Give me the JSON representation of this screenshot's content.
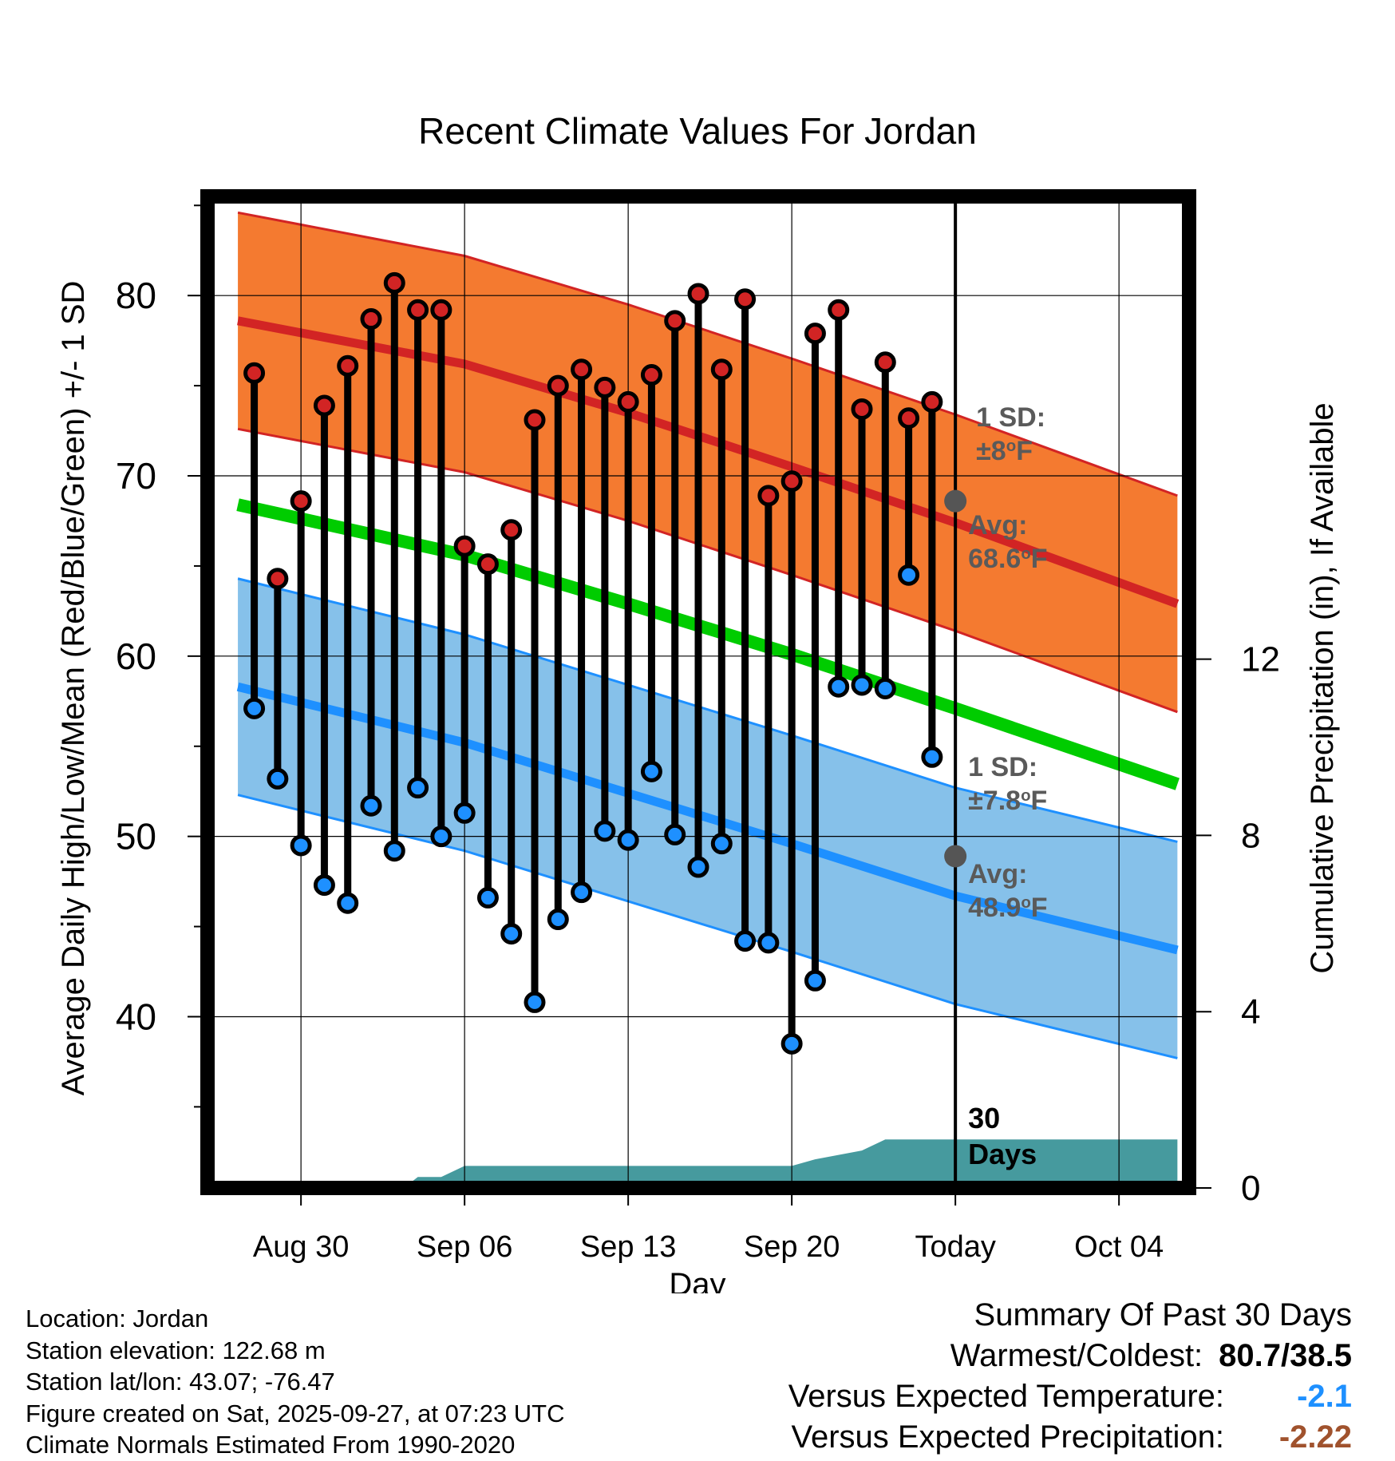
{
  "chart_data": {
    "type": "line",
    "title": "Recent Climate Values For Jordan",
    "xlabel": "Day",
    "ylabel": "Average Daily High/Low/Mean (Red/Blue/Green) +/- 1 SD",
    "y2label": "Cumulative Precipitation (in), If Available",
    "xlim": [
      -4,
      38
    ],
    "ylim": [
      30.5,
      85.5
    ],
    "y2lim": [
      0,
      22.5
    ],
    "x_ticks": [
      {
        "x": 0,
        "label": "Aug 30"
      },
      {
        "x": 7,
        "label": "Sep 06"
      },
      {
        "x": 14,
        "label": "Sep 13"
      },
      {
        "x": 21,
        "label": "Sep 20"
      },
      {
        "x": 28,
        "label": "Today"
      },
      {
        "x": 35,
        "label": "Oct 04"
      }
    ],
    "y_ticks": [
      40,
      50,
      60,
      70,
      80
    ],
    "y2_ticks": [
      0,
      4,
      8,
      12
    ],
    "days": [
      -2,
      -1,
      0,
      1,
      2,
      3,
      4,
      5,
      6,
      7,
      8,
      9,
      10,
      11,
      12,
      13,
      14,
      15,
      16,
      17,
      18,
      19,
      20,
      21,
      22,
      23,
      24,
      25,
      26,
      27
    ],
    "highs": [
      75.7,
      64.3,
      68.6,
      73.9,
      76.1,
      78.7,
      80.7,
      79.2,
      79.2,
      66.1,
      65.1,
      67.0,
      73.1,
      75.0,
      75.9,
      74.9,
      74.1,
      75.6,
      78.6,
      80.1,
      75.9,
      79.8,
      68.9,
      69.7,
      77.9,
      79.2,
      73.7,
      76.3,
      73.2,
      74.1
    ],
    "lows": [
      57.1,
      53.2,
      49.5,
      47.3,
      46.3,
      51.7,
      49.2,
      52.7,
      50.0,
      51.3,
      46.6,
      44.6,
      40.8,
      45.4,
      46.9,
      50.3,
      49.8,
      53.6,
      50.1,
      48.3,
      49.6,
      44.2,
      44.1,
      38.5,
      42.0,
      58.3,
      58.4,
      58.2,
      64.5,
      54.4
    ],
    "normal_high": {
      "name": "Average High",
      "x": [
        -2.7,
        7,
        14,
        21,
        28,
        37.5
      ],
      "values": [
        78.6,
        76.2,
        73.5,
        70.5,
        67.4,
        62.9
      ],
      "sd": 6.0
    },
    "normal_low": {
      "name": "Average Low",
      "x": [
        -2.7,
        7,
        14,
        21,
        28,
        37.5
      ],
      "values": [
        58.3,
        55.2,
        52.4,
        49.6,
        46.7,
        43.7
      ],
      "sd": 6.0
    },
    "normal_mean": {
      "name": "Mean",
      "x": [
        -2.7,
        7,
        14,
        21,
        28,
        37.5
      ],
      "values": [
        68.4,
        65.6,
        62.9,
        60.1,
        57.1,
        52.9
      ]
    },
    "precip": {
      "x": [
        -2.7,
        4.4,
        5,
        6,
        7,
        8,
        14,
        21,
        22,
        23,
        24,
        25,
        26,
        27,
        37.5
      ],
      "values": [
        0,
        0,
        0.25,
        0.25,
        0.5,
        0.5,
        0.5,
        0.5,
        0.65,
        0.75,
        0.85,
        1.1,
        1.1,
        1.1,
        1.1
      ]
    },
    "markers": {
      "avg_high": {
        "x": 28,
        "y": 68.6
      },
      "avg_low": {
        "x": 28,
        "y": 48.9
      }
    },
    "annotations": {
      "high_sd_label": "1 SD:",
      "high_sd_value": "±8°F",
      "high_avg_label": "Avg:",
      "high_avg_value": "68.6°F",
      "low_sd_label": "1 SD:",
      "low_sd_value": "±7.8°F",
      "low_avg_label": "Avg:",
      "low_avg_value": "48.9°F",
      "days_line1": "30",
      "days_line2": "Days"
    },
    "colors": {
      "high_band": "#f47a30",
      "high_line": "#d22424",
      "low_band": "#86c1ea",
      "low_line": "#1e90ff",
      "mean_line": "#00cc00",
      "precip": "#469a9e",
      "marker": "#555555"
    }
  },
  "meta": {
    "location": "Location: Jordan",
    "elevation": "Station elevation: 122.68 m",
    "latlon": "Station lat/lon: 43.07; -76.47",
    "created": "Figure created on Sat, 2025-09-27, at 07:23 UTC",
    "normals": "Climate Normals Estimated From 1990-2020"
  },
  "summary": {
    "title": "Summary Of Past 30 Days",
    "warm_cold_label": "Warmest/Coldest:",
    "warm_cold_value": "80.7/38.5",
    "temp_label": "Versus Expected Temperature:",
    "temp_value": "-2.1",
    "temp_color": "#1e90ff",
    "precip_label": "Versus Expected Precipitation:",
    "precip_value": "-2.22",
    "precip_color": "#a0522d"
  }
}
